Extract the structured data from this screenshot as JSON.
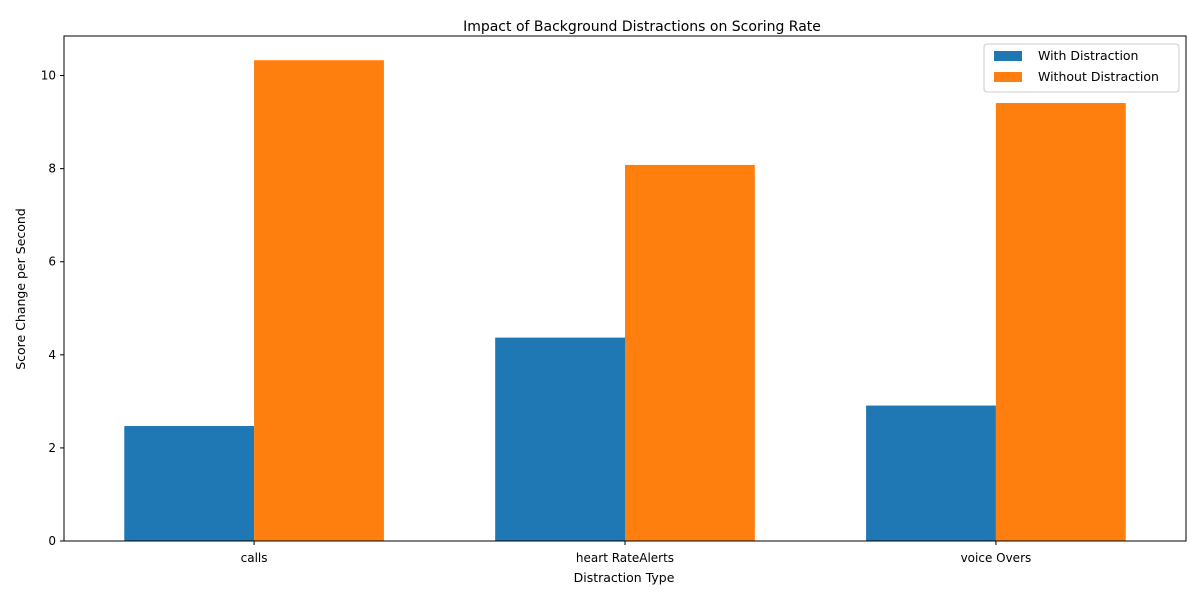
{
  "chart_data": {
    "type": "bar",
    "title": "Impact of Background Distractions on Scoring Rate",
    "xlabel": "Distraction Type",
    "ylabel": "Score Change per Second",
    "categories": [
      "calls",
      "heart RateAlerts",
      "voice Overs"
    ],
    "series": [
      {
        "name": "With Distraction",
        "color": "#1f77b4",
        "values": [
          2.47,
          4.37,
          2.91
        ]
      },
      {
        "name": "Without Distraction",
        "color": "#ff7f0e",
        "values": [
          10.33,
          8.08,
          9.41
        ]
      }
    ],
    "ylim": [
      0,
      10.85
    ],
    "yticks": [
      0,
      2,
      4,
      6,
      8,
      10
    ],
    "grid": false,
    "legend_position": "top-right"
  }
}
